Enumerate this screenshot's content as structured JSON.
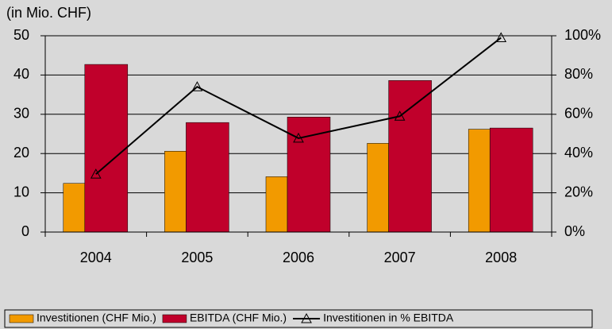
{
  "chart_data": {
    "type": "bar_line",
    "title": "(in Mio. CHF)",
    "categories": [
      "2004",
      "2005",
      "2006",
      "2007",
      "2008"
    ],
    "series": [
      {
        "name": "Investitionen (CHF Mio.)",
        "color": "#f29a00",
        "values": [
          12.4,
          20.6,
          14.1,
          22.6,
          26.2
        ]
      },
      {
        "name": "EBITDA (CHF Mio.)",
        "color": "#c0002b",
        "values": [
          42.7,
          27.9,
          29.3,
          38.6,
          26.5
        ]
      },
      {
        "name": "Investitionen in % EBITDA",
        "color": "#000000",
        "axis": "y2",
        "values": [
          29.5,
          74,
          47.8,
          59,
          99
        ]
      }
    ],
    "ylim": [
      0,
      50
    ],
    "yticks": [
      0,
      10,
      20,
      30,
      40,
      50
    ],
    "y2lim": [
      0,
      100
    ],
    "y2ticks": [
      {
        "value": 0,
        "label": "0%"
      },
      {
        "value": 20,
        "label": "20%"
      },
      {
        "value": 40,
        "label": "40%"
      },
      {
        "value": 60,
        "label": "60%"
      },
      {
        "value": 80,
        "label": "80%"
      },
      {
        "value": 100,
        "label": "100%"
      }
    ],
    "grid": true
  }
}
